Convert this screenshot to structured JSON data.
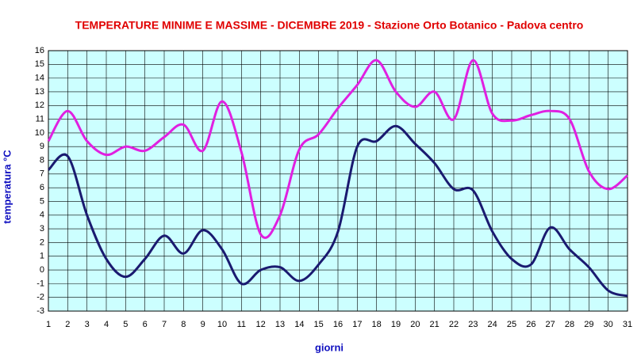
{
  "chart_data": {
    "type": "line",
    "title": "TEMPERATURE MINIME E MASSIME  - DICEMBRE 2019 - Stazione Orto Botanico - Padova centro",
    "x_label": "giorni",
    "y_label": "temperatura °C",
    "x": [
      1,
      2,
      3,
      4,
      5,
      6,
      7,
      8,
      9,
      10,
      11,
      12,
      13,
      14,
      15,
      16,
      17,
      18,
      19,
      20,
      21,
      22,
      23,
      24,
      25,
      26,
      27,
      28,
      29,
      30,
      31
    ],
    "series": [
      {
        "color": "#e020e0",
        "values": [
          9.4,
          11.6,
          9.4,
          8.4,
          9.0,
          8.7,
          9.7,
          10.6,
          8.7,
          12.3,
          8.6,
          2.6,
          4.0,
          8.8,
          9.9,
          11.8,
          13.5,
          15.3,
          13.0,
          11.9,
          13.0,
          11.0,
          15.3,
          11.4,
          10.9,
          11.3,
          11.6,
          11.0,
          7.2,
          5.9,
          6.9
        ]
      },
      {
        "color": "#1a1a70",
        "values": [
          7.3,
          8.3,
          4.0,
          0.8,
          -0.5,
          0.8,
          2.5,
          1.2,
          2.9,
          1.5,
          -1.0,
          0.0,
          0.2,
          -0.8,
          0.4,
          2.8,
          9.0,
          9.4,
          10.5,
          9.2,
          7.8,
          5.9,
          5.8,
          2.8,
          0.8,
          0.4,
          3.1,
          1.5,
          0.2,
          -1.5,
          -1.9
        ]
      }
    ],
    "xlim": [
      1,
      31
    ],
    "xticks": [
      1,
      2,
      3,
      4,
      5,
      6,
      7,
      8,
      9,
      10,
      11,
      12,
      13,
      14,
      15,
      16,
      17,
      18,
      19,
      20,
      21,
      22,
      23,
      24,
      25,
      26,
      27,
      28,
      29,
      30,
      31
    ],
    "ylim": [
      -3,
      16
    ],
    "yticks": [
      -3,
      -2,
      -1,
      0,
      1,
      2,
      3,
      4,
      5,
      6,
      7,
      8,
      9,
      10,
      11,
      12,
      13,
      14,
      15,
      16
    ],
    "grid": true,
    "background": "#ccffff"
  }
}
